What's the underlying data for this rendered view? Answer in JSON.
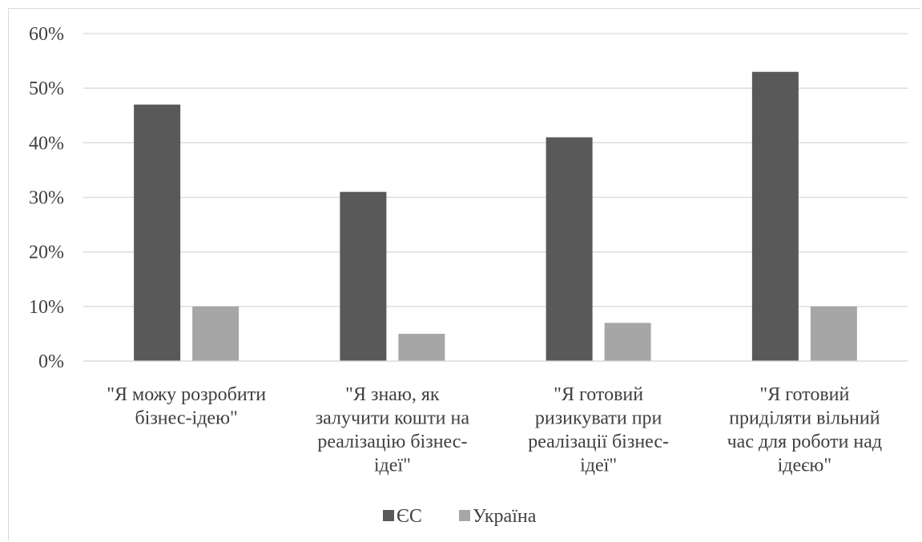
{
  "chart_data": {
    "type": "bar",
    "categories": [
      [
        "\"Я можу розробити",
        "бізнес-ідею\""
      ],
      [
        "\"Я знаю, як",
        "залучити кошти на",
        "реалізацію бізнес-",
        "ідеї\""
      ],
      [
        "\"Я готовий",
        "ризикувати при",
        "реалізації бізнес-",
        "ідеї\""
      ],
      [
        "\"Я готовий",
        "приділяти вільний",
        "час для роботи над",
        "ідеєю\""
      ]
    ],
    "series": [
      {
        "name": "ЄС",
        "values": [
          47,
          31,
          41,
          53
        ],
        "color": "#595959"
      },
      {
        "name": "Україна",
        "values": [
          10,
          5,
          7,
          10
        ],
        "color": "#a6a6a6"
      }
    ],
    "ylim": [
      0,
      60
    ],
    "yticks": [
      "0%",
      "10%",
      "20%",
      "30%",
      "40%",
      "50%",
      "60%"
    ],
    "grid": true,
    "legend": "bottom-center",
    "title": "",
    "xlabel": "",
    "ylabel": ""
  }
}
